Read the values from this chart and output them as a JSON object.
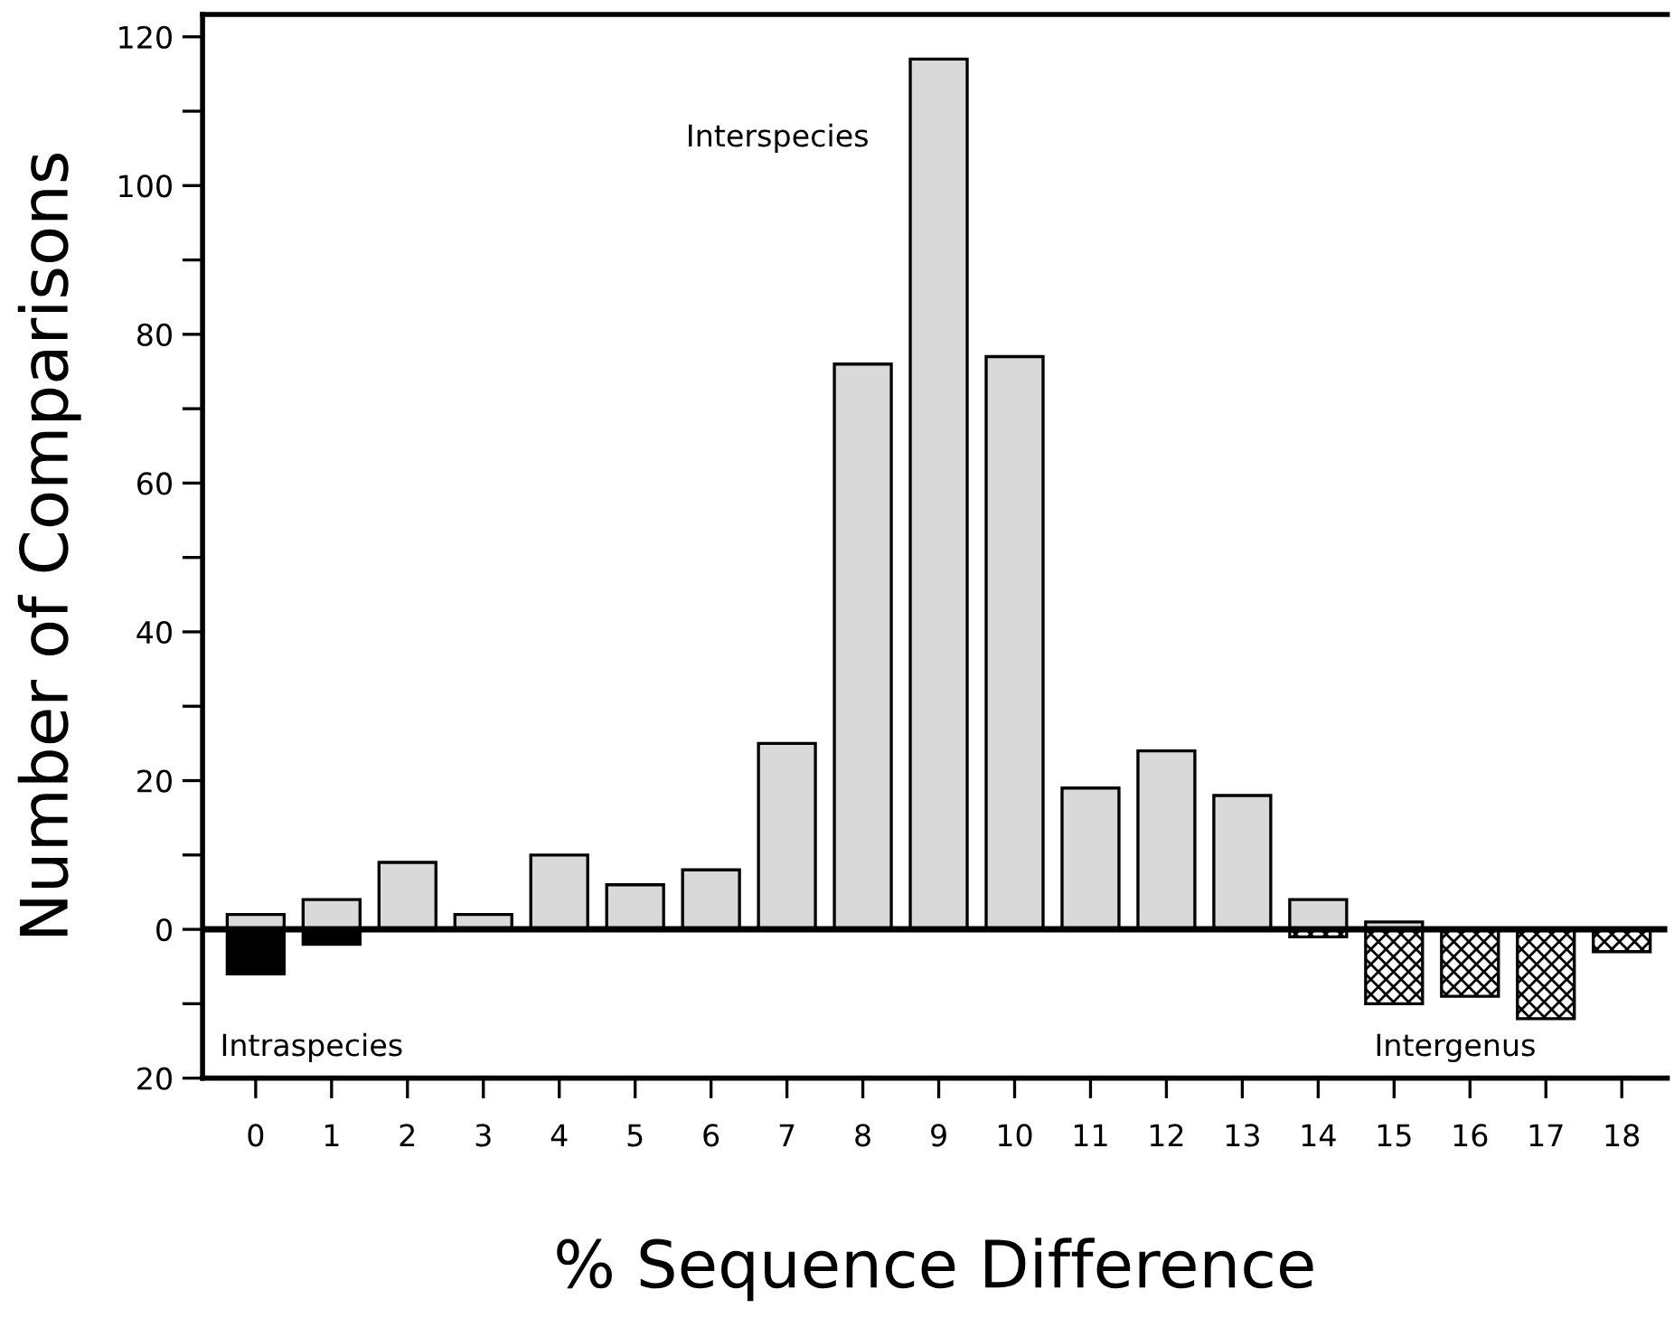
{
  "chart_data": {
    "type": "bar",
    "xlabel": "% Sequence Difference",
    "ylabel": "Number of Comparisons",
    "categories": [
      "0",
      "1",
      "2",
      "3",
      "4",
      "5",
      "6",
      "7",
      "8",
      "9",
      "10",
      "11",
      "12",
      "13",
      "14",
      "15",
      "16",
      "17",
      "18"
    ],
    "series": [
      {
        "name": "Interspecies",
        "color": "#d9d9d9",
        "values": [
          2,
          4,
          9,
          2,
          10,
          6,
          8,
          25,
          76,
          117,
          77,
          19,
          24,
          18,
          4,
          1,
          null,
          null,
          null
        ]
      },
      {
        "name": "Intraspecies",
        "color": "#000000",
        "values": [
          -6,
          -2,
          null,
          null,
          null,
          null,
          null,
          null,
          null,
          null,
          null,
          null,
          null,
          null,
          null,
          null,
          null,
          null,
          null
        ]
      },
      {
        "name": "Intergenus",
        "color": "#000000",
        "values": [
          null,
          null,
          null,
          null,
          null,
          null,
          null,
          null,
          null,
          null,
          null,
          null,
          null,
          null,
          -1,
          -10,
          -9,
          -12,
          -3
        ]
      }
    ],
    "ylim": [
      -20,
      123
    ],
    "yticks": [
      {
        "value": -20,
        "label": "20"
      },
      {
        "value": -10,
        "label": null
      },
      0,
      {
        "value": 10,
        "label": null
      },
      20,
      {
        "value": 30,
        "label": null
      },
      40,
      {
        "value": 50,
        "label": null
      },
      60,
      {
        "value": 70,
        "label": null
      },
      80,
      {
        "value": 90,
        "label": null
      },
      100,
      {
        "value": 110,
        "label": null
      },
      120
    ],
    "ref_lines": [
      {
        "axis": "y",
        "value": 0,
        "color": "#000000"
      }
    ],
    "grid": false,
    "legend": false
  }
}
